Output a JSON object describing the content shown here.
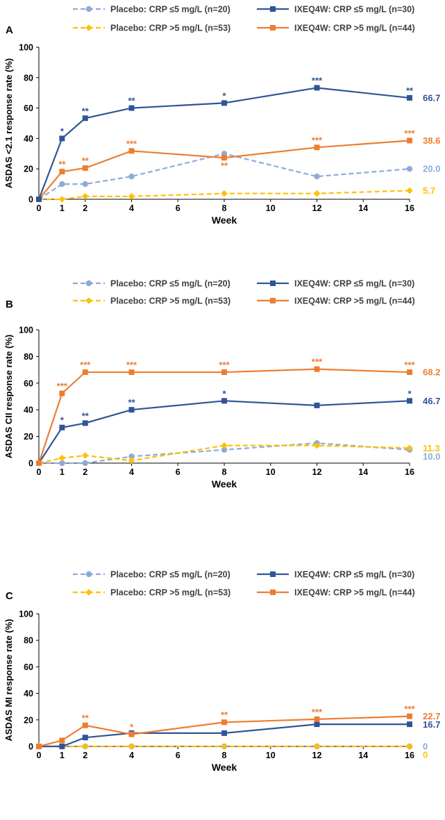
{
  "colors": {
    "placebo_low": "#8eaadb",
    "ixe_low": "#2f5597",
    "placebo_high": "#ffc000",
    "ixe_high": "#ed7d31",
    "axis": "#000000",
    "zero_line": "#000000"
  },
  "legend": [
    {
      "key": "placebo_low",
      "label": "Placebo: CRP ≤5 mg/L (n=20)",
      "dash": true,
      "marker": "circle"
    },
    {
      "key": "ixe_low",
      "label": "IXEQ4W: CRP ≤5 mg/L (n=30)",
      "dash": false,
      "marker": "square"
    },
    {
      "key": "placebo_high",
      "label": "Placebo: CRP >5 mg/L (n=53)",
      "dash": true,
      "marker": "diamond"
    },
    {
      "key": "ixe_high",
      "label": "IXEQ4W: CRP >5 mg/L (n=44)",
      "dash": false,
      "marker": "square"
    }
  ],
  "chart_data": [
    {
      "type": "line",
      "panel_label": "A",
      "xlabel": "Week",
      "ylabel": "ASDAS <2.1 response rate (%)",
      "x": [
        0,
        1,
        2,
        4,
        8,
        12,
        16
      ],
      "xticks": [
        "0",
        "2",
        "4",
        "6",
        "8",
        "10",
        "12",
        "14",
        "16"
      ],
      "yticks": [
        "0",
        "20",
        "40",
        "60",
        "80",
        "100"
      ],
      "xlim": [
        0,
        16
      ],
      "ylim": [
        0,
        100
      ],
      "series": [
        {
          "key": "placebo_low",
          "name": "Placebo: CRP ≤5 mg/L (n=20)",
          "values": [
            0,
            10,
            10,
            15,
            30,
            15,
            20
          ],
          "sig": [
            "",
            "",
            "",
            "",
            "",
            "",
            ""
          ],
          "sig_below": [],
          "end_label": "20.0"
        },
        {
          "key": "placebo_high",
          "name": "Placebo: CRP >5 mg/L (n=53)",
          "values": [
            0,
            0,
            1.9,
            1.9,
            3.8,
            3.8,
            5.7
          ],
          "sig": [
            "",
            "",
            "",
            "",
            "",
            "",
            ""
          ],
          "sig_below": [],
          "end_label": "5.7"
        },
        {
          "key": "ixe_high",
          "name": "IXEQ4W: CRP >5 mg/L (n=44)",
          "values": [
            0,
            18.2,
            20.5,
            31.8,
            27.3,
            34.1,
            38.6
          ],
          "sig": [
            "",
            "**",
            "**",
            "***",
            "**",
            "***",
            "***"
          ],
          "sig_below": [
            4
          ],
          "end_label": "38.6"
        },
        {
          "key": "ixe_low",
          "name": "IXEQ4W: CRP ≤5 mg/L (n=30)",
          "values": [
            0,
            40,
            53.3,
            60,
            63.3,
            73.3,
            66.7
          ],
          "sig": [
            "",
            "*",
            "**",
            "**",
            "*",
            "***",
            "**"
          ],
          "sig_below": [],
          "end_label": "66.7"
        }
      ]
    },
    {
      "type": "line",
      "panel_label": "B",
      "xlabel": "Week",
      "ylabel": "ASDAS CII response rate (%)",
      "x": [
        0,
        1,
        2,
        4,
        8,
        12,
        16
      ],
      "xticks": [
        "0",
        "2",
        "4",
        "6",
        "8",
        "10",
        "12",
        "14",
        "16"
      ],
      "yticks": [
        "0",
        "20",
        "40",
        "60",
        "80",
        "100"
      ],
      "xlim": [
        0,
        16
      ],
      "ylim": [
        0,
        100
      ],
      "series": [
        {
          "key": "placebo_low",
          "name": "Placebo: CRP ≤5 mg/L (n=20)",
          "values": [
            0,
            0,
            0,
            5,
            10,
            15,
            10
          ],
          "sig": [
            "",
            "",
            "",
            "",
            "",
            "",
            ""
          ],
          "sig_below": [],
          "end_label": "10.0"
        },
        {
          "key": "placebo_high",
          "name": "Placebo: CRP >5 mg/L (n=53)",
          "values": [
            0,
            3.8,
            5.7,
            1.9,
            13.2,
            13.2,
            11.3
          ],
          "sig": [
            "",
            "",
            "",
            "",
            "",
            "",
            ""
          ],
          "sig_below": [],
          "end_label": "11.3"
        },
        {
          "key": "ixe_low",
          "name": "IXEQ4W: CRP ≤5 mg/L (n=30)",
          "values": [
            0,
            26.7,
            30,
            40,
            46.7,
            43.3,
            46.7
          ],
          "sig": [
            "",
            "*",
            "**",
            "**",
            "*",
            "",
            "*"
          ],
          "sig_below": [],
          "end_label": "46.7"
        },
        {
          "key": "ixe_high",
          "name": "IXEQ4W: CRP >5 mg/L (n=44)",
          "values": [
            0,
            52.3,
            68.2,
            68.2,
            68.2,
            70.5,
            68.2
          ],
          "sig": [
            "",
            "***",
            "***",
            "***",
            "***",
            "***",
            "***"
          ],
          "sig_below": [],
          "end_label": "68.2"
        }
      ]
    },
    {
      "type": "line",
      "panel_label": "C",
      "xlabel": "Week",
      "ylabel": "ASDAS MI response rate (%)",
      "x": [
        0,
        1,
        2,
        4,
        8,
        12,
        16
      ],
      "xticks": [
        "0",
        "2",
        "4",
        "6",
        "8",
        "10",
        "12",
        "14",
        "16"
      ],
      "yticks": [
        "0",
        "20",
        "40",
        "60",
        "80",
        "100"
      ],
      "xlim": [
        0,
        16
      ],
      "ylim": [
        0,
        100
      ],
      "series": [
        {
          "key": "placebo_low",
          "name": "Placebo: CRP ≤5 mg/L (n=20)",
          "values": [
            0,
            0,
            0,
            0,
            0,
            0,
            0
          ],
          "sig": [
            "",
            "",
            "",
            "",
            "",
            "",
            ""
          ],
          "sig_below": [],
          "end_label": "0"
        },
        {
          "key": "placebo_high",
          "name": "Placebo: CRP >5 mg/L (n=53)",
          "values": [
            0,
            0,
            0,
            0,
            0,
            0,
            0
          ],
          "sig": [
            "",
            "",
            "",
            "",
            "",
            "",
            ""
          ],
          "sig_below": [],
          "end_label": "0"
        },
        {
          "key": "ixe_low",
          "name": "IXEQ4W: CRP ≤5 mg/L (n=30)",
          "values": [
            0,
            0,
            6.7,
            10,
            10,
            16.7,
            16.7
          ],
          "sig": [
            "",
            "",
            "",
            "",
            "",
            "",
            ""
          ],
          "sig_below": [],
          "end_label": "16.7"
        },
        {
          "key": "ixe_high",
          "name": "IXEQ4W: CRP >5 mg/L (n=44)",
          "values": [
            0,
            4.5,
            15.9,
            9.1,
            18.2,
            20.5,
            22.7
          ],
          "sig": [
            "",
            "",
            "**",
            "*",
            "**",
            "***",
            "***"
          ],
          "sig_below": [],
          "end_label": "22.7"
        }
      ]
    }
  ]
}
